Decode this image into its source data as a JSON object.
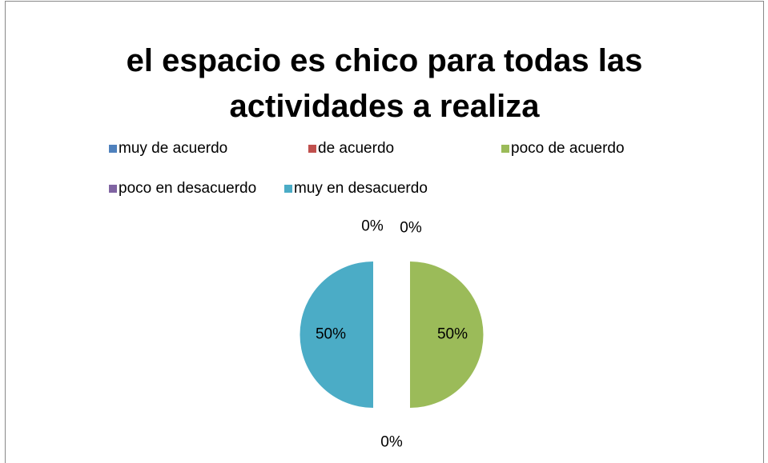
{
  "chart_data": {
    "type": "pie",
    "title": "el espacio es chico para todas las actividades a realiza",
    "categories": [
      "muy de acuerdo",
      "de acuerdo",
      "poco de acuerdo",
      "poco en desacuerdo",
      "muy en desacuerdo"
    ],
    "values": [
      0,
      0,
      50,
      0,
      50
    ],
    "value_labels": [
      "0%",
      "0%",
      "50%",
      "0%",
      "50%"
    ],
    "colors": [
      "#4f81bd",
      "#c0504d",
      "#9bbb59",
      "#8064a2",
      "#4bacc6"
    ],
    "legend": "top"
  }
}
